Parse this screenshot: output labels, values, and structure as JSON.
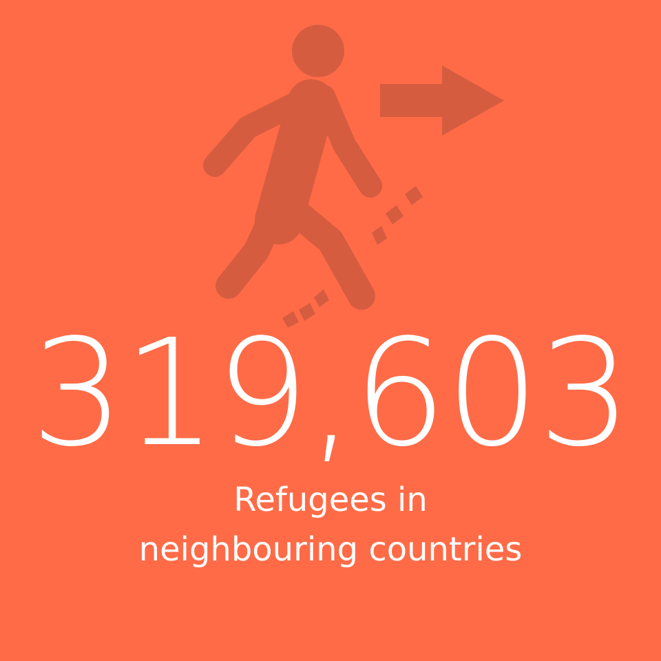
{
  "stat": {
    "value": "319,603",
    "caption_line1": "Refugees in",
    "caption_line2": "neighbouring countries"
  },
  "icon": {
    "name": "walking-person-leaving-icon",
    "arrow": "arrow-right-icon",
    "trail": "dashed-trail-icon"
  },
  "colors": {
    "background": "#ff6b47",
    "icon": "#d65c40",
    "text": "#ffffff"
  }
}
